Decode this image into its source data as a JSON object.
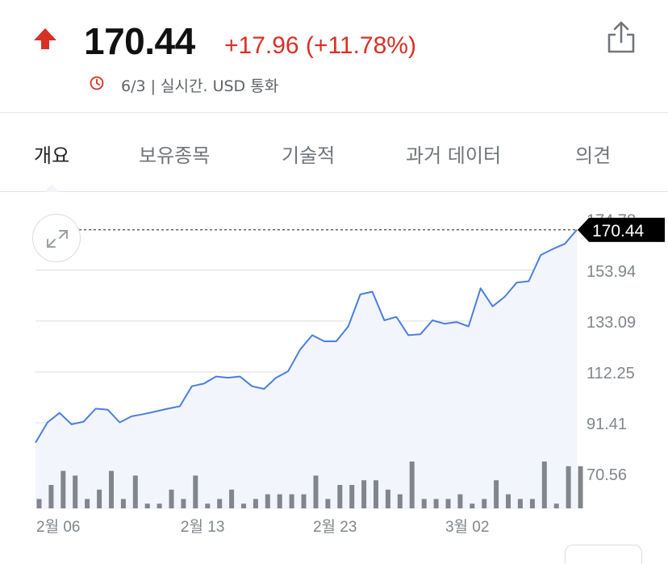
{
  "quote": {
    "price": "170.44",
    "change": "+17.96 (+11.78%)",
    "meta": "6/3 | 실시간. USD 통화",
    "colors": {
      "up": "#d93025",
      "line": "#4a7fe0",
      "fill": "#f3f5fc",
      "volume": "#80868b"
    }
  },
  "tabs": [
    {
      "label": "개요",
      "active": true
    },
    {
      "label": "보유종목"
    },
    {
      "label": "기술적"
    },
    {
      "label": "과거 데이터"
    },
    {
      "label": "의견"
    }
  ],
  "icons": {
    "trend": "up-arrow-icon",
    "time": "clock-icon",
    "share": "share-icon",
    "expand": "expand-icon"
  },
  "chart_data": {
    "type": "line",
    "title": "",
    "xlabel": "",
    "ylabel": "",
    "ylim": [
      65,
      176
    ],
    "y_ticks": [
      {
        "value": 174.78,
        "label": "174.78"
      },
      {
        "value": 153.94,
        "label": "153.94"
      },
      {
        "value": 133.09,
        "label": "133.09"
      },
      {
        "value": 112.25,
        "label": "112.25"
      },
      {
        "value": 91.41,
        "label": "91.41"
      },
      {
        "value": 70.56,
        "label": "70.56"
      }
    ],
    "x_ticks": [
      "2월 06",
      "2월 13",
      "2월 23",
      "3월 02"
    ],
    "x_tick_index": [
      0,
      12,
      23,
      34
    ],
    "last_value_label": "170.44",
    "grid": true,
    "series": [
      {
        "values": [
          83.3,
          91.6,
          95.5,
          90.8,
          91.9,
          97.2,
          96.8,
          91.6,
          94.1,
          95.0,
          96.1,
          97.2,
          98.2,
          106.4,
          107.5,
          110.4,
          109.9,
          110.4,
          106.4,
          105.3,
          109.9,
          112.5,
          121.4,
          127.3,
          124.8,
          124.8,
          130.9,
          144.0,
          145.1,
          133.4,
          134.8,
          127.3,
          127.7,
          133.4,
          132.0,
          132.7,
          130.9,
          146.5,
          139.1,
          143.0,
          148.8,
          149.4,
          160.1,
          162.6,
          164.7,
          170.44
        ]
      }
    ],
    "volume": [
      2,
      5,
      8,
      7,
      2,
      4,
      8,
      2,
      7,
      1,
      1,
      4,
      2,
      7,
      1,
      2,
      4,
      1,
      2,
      3,
      3,
      3,
      3,
      7,
      2,
      5,
      5,
      6,
      6,
      4,
      3,
      10,
      2,
      2,
      2,
      3,
      1,
      2,
      6,
      3,
      2,
      2,
      10,
      1,
      9,
      9
    ]
  }
}
